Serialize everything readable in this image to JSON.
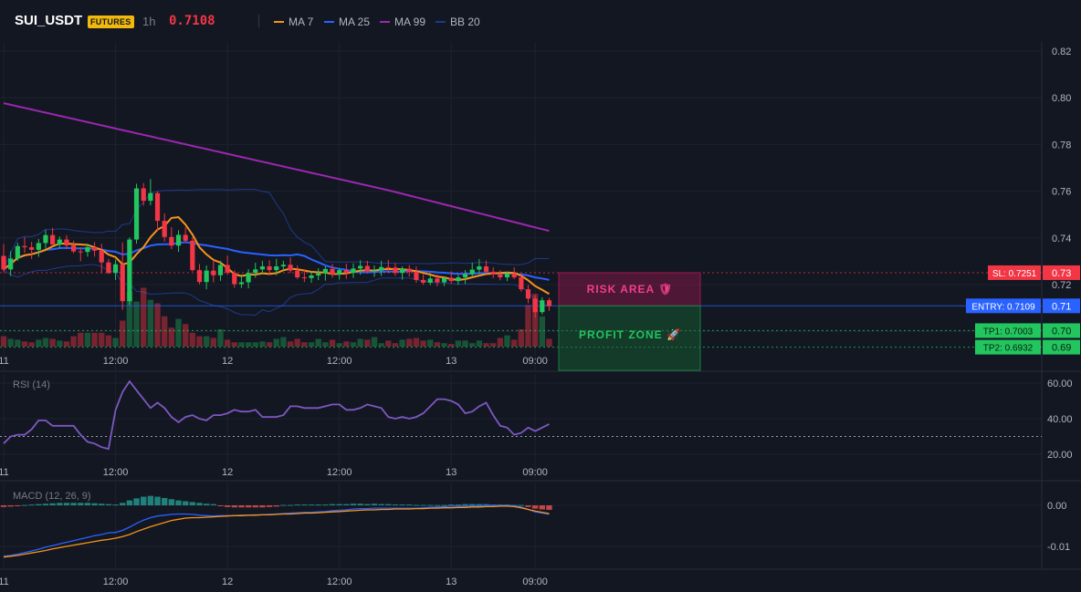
{
  "header": {
    "symbol": "SUI_USDT",
    "badge": "FUTURES",
    "timeframe": "1h",
    "last_price": "0.7108"
  },
  "legend": [
    {
      "label": "MA 7",
      "color": "#f7931a"
    },
    {
      "label": "MA 25",
      "color": "#2962ff"
    },
    {
      "label": "MA 99",
      "color": "#9c27b0"
    },
    {
      "label": "BB 20",
      "color": "#1e3a8a"
    }
  ],
  "colors": {
    "background": "#131722",
    "up": "#22c55e",
    "down": "#f23645",
    "grid": "#1e222d"
  },
  "x_ticks": [
    "11",
    "12:00",
    "12",
    "12:00",
    "13",
    "09:00"
  ],
  "chart_data": [
    {
      "type": "candlestick",
      "title": "SUI_USDT 1h",
      "y_ticks": [
        0.7,
        0.72,
        0.74,
        0.76,
        0.78,
        0.8,
        0.82
      ],
      "ylim": [
        0.6885,
        0.8235
      ],
      "levels": [
        {
          "label": "SL: 0.7251",
          "value": 0.7251,
          "axis_label": "0.73",
          "color": "#f23645"
        },
        {
          "label": "ENTRY: 0.7109",
          "value": 0.7109,
          "axis_label": "0.71",
          "color": "#2962ff"
        },
        {
          "label": "TP1: 0.7003",
          "value": 0.7003,
          "axis_label": "0.70",
          "color": "#22c55e"
        },
        {
          "label": "TP2: 0.6932",
          "value": 0.6932,
          "axis_label": "0.69",
          "color": "#22c55e"
        }
      ],
      "zones": [
        {
          "label": "RISK AREA 🛡",
          "from": 0.7251,
          "to": 0.7109
        },
        {
          "label": "PROFIT ZONE 🚀",
          "from": 0.7109,
          "to": 0.6885
        }
      ],
      "ohlc": [
        [
          0.7323,
          0.7374,
          0.7252,
          0.7265
        ],
        [
          0.7265,
          0.7343,
          0.7237,
          0.7312
        ],
        [
          0.7312,
          0.7379,
          0.7302,
          0.7365
        ],
        [
          0.7365,
          0.7403,
          0.7336,
          0.736
        ],
        [
          0.736,
          0.7383,
          0.731,
          0.7349
        ],
        [
          0.7349,
          0.7395,
          0.7319,
          0.7378
        ],
        [
          0.7378,
          0.7435,
          0.7353,
          0.7412
        ],
        [
          0.7412,
          0.7443,
          0.7374,
          0.7371
        ],
        [
          0.7371,
          0.7406,
          0.7355,
          0.7393
        ],
        [
          0.7393,
          0.7412,
          0.7352,
          0.7368
        ],
        [
          0.7368,
          0.7388,
          0.7334,
          0.7342
        ],
        [
          0.7342,
          0.736,
          0.73,
          0.734
        ],
        [
          0.734,
          0.7375,
          0.732,
          0.736
        ],
        [
          0.736,
          0.7382,
          0.732,
          0.7345
        ],
        [
          0.7345,
          0.7375,
          0.725,
          0.7295
        ],
        [
          0.7295,
          0.731,
          0.7245,
          0.725
        ],
        [
          0.725,
          0.7307,
          0.722,
          0.7287
        ],
        [
          0.7287,
          0.7381,
          0.7092,
          0.7129
        ],
        [
          0.7129,
          0.7402,
          0.7112,
          0.7393
        ],
        [
          0.7393,
          0.7632,
          0.7375,
          0.7612
        ],
        [
          0.7612,
          0.7635,
          0.7538,
          0.7559
        ],
        [
          0.7559,
          0.7652,
          0.754,
          0.7592
        ],
        [
          0.7592,
          0.7599,
          0.7428,
          0.7473
        ],
        [
          0.7473,
          0.7505,
          0.7385,
          0.7404
        ],
        [
          0.7404,
          0.7446,
          0.7352,
          0.7367
        ],
        [
          0.7367,
          0.7433,
          0.734,
          0.7413
        ],
        [
          0.7413,
          0.7445,
          0.738,
          0.7388
        ],
        [
          0.7388,
          0.7403,
          0.7256,
          0.7262
        ],
        [
          0.7262,
          0.7288,
          0.7201,
          0.7211
        ],
        [
          0.7211,
          0.7282,
          0.718,
          0.726
        ],
        [
          0.726,
          0.7305,
          0.721,
          0.724
        ],
        [
          0.724,
          0.7302,
          0.7216,
          0.7284
        ],
        [
          0.7284,
          0.7324,
          0.7242,
          0.7251
        ],
        [
          0.7251,
          0.7261,
          0.7186,
          0.7202
        ],
        [
          0.7202,
          0.7243,
          0.7185,
          0.721
        ],
        [
          0.721,
          0.7266,
          0.7184,
          0.725
        ],
        [
          0.725,
          0.7294,
          0.7229,
          0.7265
        ],
        [
          0.7265,
          0.7302,
          0.7245,
          0.7278
        ],
        [
          0.7278,
          0.7304,
          0.7243,
          0.7262
        ],
        [
          0.7262,
          0.731,
          0.724,
          0.7278
        ],
        [
          0.7278,
          0.7302,
          0.7258,
          0.7285
        ],
        [
          0.7285,
          0.7316,
          0.725,
          0.726
        ],
        [
          0.726,
          0.7282,
          0.7224,
          0.7231
        ],
        [
          0.7231,
          0.7266,
          0.7211,
          0.7228
        ],
        [
          0.7228,
          0.7258,
          0.7208,
          0.7239
        ],
        [
          0.7239,
          0.727,
          0.7219,
          0.7248
        ],
        [
          0.7248,
          0.7278,
          0.7217,
          0.7267
        ],
        [
          0.7267,
          0.7288,
          0.723,
          0.7244
        ],
        [
          0.7244,
          0.727,
          0.7222,
          0.7262
        ],
        [
          0.7262,
          0.7289,
          0.7225,
          0.725
        ],
        [
          0.725,
          0.7291,
          0.7229,
          0.7269
        ],
        [
          0.7269,
          0.7304,
          0.7243,
          0.728
        ],
        [
          0.728,
          0.7302,
          0.7248,
          0.7257
        ],
        [
          0.7257,
          0.7282,
          0.7233,
          0.726
        ],
        [
          0.726,
          0.7302,
          0.7237,
          0.7275
        ],
        [
          0.7275,
          0.7306,
          0.7251,
          0.7273
        ],
        [
          0.7273,
          0.7291,
          0.7238,
          0.725
        ],
        [
          0.725,
          0.7278,
          0.7221,
          0.7268
        ],
        [
          0.7268,
          0.7283,
          0.7234,
          0.7255
        ],
        [
          0.7255,
          0.7278,
          0.7208,
          0.722
        ],
        [
          0.722,
          0.7244,
          0.7199,
          0.7208
        ],
        [
          0.7208,
          0.7239,
          0.7198,
          0.7226
        ],
        [
          0.7226,
          0.7243,
          0.7193,
          0.721
        ],
        [
          0.721,
          0.7235,
          0.7194,
          0.7229
        ],
        [
          0.7229,
          0.7257,
          0.7204,
          0.7215
        ],
        [
          0.7215,
          0.7241,
          0.7199,
          0.7231
        ],
        [
          0.7231,
          0.7262,
          0.7203,
          0.7245
        ],
        [
          0.7245,
          0.7294,
          0.7233,
          0.7264
        ],
        [
          0.7264,
          0.7309,
          0.7246,
          0.7278
        ],
        [
          0.7278,
          0.7303,
          0.7246,
          0.7255
        ],
        [
          0.7255,
          0.7274,
          0.7228,
          0.7243
        ],
        [
          0.7243,
          0.7262,
          0.7218,
          0.7231
        ],
        [
          0.7231,
          0.7255,
          0.7215,
          0.7248
        ],
        [
          0.7248,
          0.7274,
          0.7224,
          0.7231
        ],
        [
          0.7231,
          0.7245,
          0.717,
          0.718
        ],
        [
          0.718,
          0.7198,
          0.712,
          0.714
        ],
        [
          0.714,
          0.7155,
          0.7058,
          0.7082
        ],
        [
          0.7082,
          0.7146,
          0.7072,
          0.7133
        ],
        [
          0.7133,
          0.7143,
          0.7087,
          0.7108
        ]
      ],
      "volume": [
        12,
        9,
        8,
        6,
        5,
        8,
        10,
        9,
        7,
        6,
        12,
        16,
        16,
        16,
        16,
        13,
        10,
        30,
        63,
        52,
        68,
        54,
        50,
        35,
        22,
        32,
        26,
        16,
        12,
        12,
        10,
        20,
        8,
        5,
        5,
        5,
        5,
        6,
        5,
        9,
        11,
        6,
        9,
        5,
        5,
        9,
        5,
        8,
        4,
        6,
        5,
        9,
        8,
        11,
        4,
        7,
        4,
        8,
        9,
        10,
        7,
        8,
        5,
        4,
        3,
        7,
        7,
        4,
        7,
        4,
        4,
        10,
        13,
        8,
        20,
        48,
        61,
        35,
        9
      ]
    },
    {
      "type": "line",
      "title": "RSI (14)",
      "y_ticks": [
        20.0,
        40.0,
        60.0
      ],
      "ylim": [
        17.8,
        68.6
      ],
      "reference_line": 30,
      "values": [
        26,
        30,
        31,
        31,
        34,
        39,
        39,
        36,
        36,
        36,
        36,
        31,
        27,
        26,
        24,
        23,
        45,
        55,
        61,
        56,
        51,
        46,
        49,
        46,
        41,
        38,
        41,
        42,
        40,
        39,
        42,
        42,
        43,
        45,
        44,
        44,
        45,
        41,
        41,
        41,
        42,
        47,
        47,
        46,
        46,
        46,
        47,
        48,
        48,
        45,
        45,
        46,
        48,
        47,
        46,
        41,
        40,
        41,
        40,
        41,
        43,
        47,
        51,
        51,
        50,
        48,
        43,
        44,
        47,
        49,
        42,
        36,
        35,
        31,
        32,
        35,
        33,
        35,
        37
      ]
    },
    {
      "type": "bar+line",
      "title": "MACD (12, 26, 9)",
      "y_ticks": [
        0.0,
        -0.01
      ],
      "ylim": [
        -0.0155,
        0.0053
      ],
      "series": [
        {
          "name": "histogram",
          "values": [
            -0.0004,
            -0.0003,
            -0.0002,
            0.0001,
            0.0002,
            0.0003,
            0.0004,
            0.0005,
            0.0006,
            0.0006,
            0.0006,
            0.0006,
            0.0006,
            0.0005,
            0.0004,
            0.0003,
            0.0002,
            0.0006,
            0.0012,
            0.0017,
            0.0021,
            0.0023,
            0.0021,
            0.0018,
            0.0015,
            0.0012,
            0.001,
            0.0008,
            0.0006,
            0.0004,
            0.0003,
            -0.0001,
            -0.0004,
            -0.0005,
            -0.0005,
            -0.0005,
            -0.0005,
            -0.0005,
            -0.0004,
            -0.0003,
            0.0001,
            0.0001,
            0.0002,
            0.0002,
            0.0002,
            0.0002,
            0.0002,
            0.0003,
            0.0003,
            0.0003,
            0.0004,
            0.0004,
            0.0003,
            0.0004,
            0.0003,
            0.0003,
            0.0002,
            0.0002,
            0.0002,
            0.0001,
            0.0001,
            0.0001,
            0.0001,
            0.0001,
            0.0002,
            0.0002,
            0.0003,
            0.0003,
            0.0003,
            0.0003,
            0.0002,
            0.0002,
            0.0002,
            0.0001,
            0.0001,
            -0.0004,
            -0.0008,
            -0.001,
            -0.0011
          ]
        },
        {
          "name": "macd",
          "values": [
            -0.0124,
            -0.0122,
            -0.0119,
            -0.0115,
            -0.0111,
            -0.0107,
            -0.0102,
            -0.0098,
            -0.0094,
            -0.009,
            -0.0086,
            -0.0082,
            -0.0078,
            -0.0074,
            -0.0071,
            -0.0067,
            -0.0066,
            -0.0061,
            -0.0053,
            -0.0044,
            -0.0036,
            -0.003,
            -0.0026,
            -0.0024,
            -0.0022,
            -0.0021,
            -0.0021,
            -0.0022,
            -0.0024,
            -0.0025,
            -0.0026,
            -0.0025,
            -0.0025,
            -0.0025,
            -0.0024,
            -0.0024,
            -0.0023,
            -0.0023,
            -0.0022,
            -0.0021,
            -0.002,
            -0.0019,
            -0.0018,
            -0.0017,
            -0.0017,
            -0.0016,
            -0.0015,
            -0.0013,
            -0.0012,
            -0.0011,
            -0.0009,
            -0.0008,
            -0.0008,
            -0.0007,
            -0.0007,
            -0.0007,
            -0.0007,
            -0.0007,
            -0.0007,
            -0.0007,
            -0.0006,
            -0.0005,
            -0.0004,
            -0.0003,
            -0.0002,
            -0.0002,
            -0.0002,
            -0.0001,
            -0.0001,
            0.0,
            0.0,
            0.0,
            0.0,
            -0.0001,
            -0.0004,
            -0.001,
            -0.0016,
            -0.0019,
            -0.0022
          ]
        },
        {
          "name": "signal",
          "values": [
            -0.0126,
            -0.0124,
            -0.0122,
            -0.0119,
            -0.0116,
            -0.0113,
            -0.011,
            -0.0106,
            -0.0103,
            -0.01,
            -0.0097,
            -0.0094,
            -0.0091,
            -0.0088,
            -0.0085,
            -0.0083,
            -0.008,
            -0.0076,
            -0.0071,
            -0.0064,
            -0.0058,
            -0.0052,
            -0.0047,
            -0.0042,
            -0.0037,
            -0.0034,
            -0.0031,
            -0.003,
            -0.003,
            -0.0029,
            -0.0028,
            -0.0027,
            -0.0026,
            -0.0025,
            -0.0025,
            -0.0024,
            -0.0024,
            -0.0023,
            -0.0023,
            -0.0022,
            -0.0021,
            -0.0021,
            -0.002,
            -0.0019,
            -0.0019,
            -0.0018,
            -0.0017,
            -0.0016,
            -0.0015,
            -0.0014,
            -0.0013,
            -0.0012,
            -0.0011,
            -0.0011,
            -0.001,
            -0.001,
            -0.0009,
            -0.0009,
            -0.0009,
            -0.0008,
            -0.0008,
            -0.0007,
            -0.0007,
            -0.0006,
            -0.0006,
            -0.0005,
            -0.0005,
            -0.0004,
            -0.0004,
            -0.0003,
            -0.0003,
            -0.0002,
            -0.0002,
            -0.0003,
            -0.0006,
            -0.001,
            -0.0014,
            -0.0017,
            -0.002
          ]
        }
      ]
    }
  ]
}
